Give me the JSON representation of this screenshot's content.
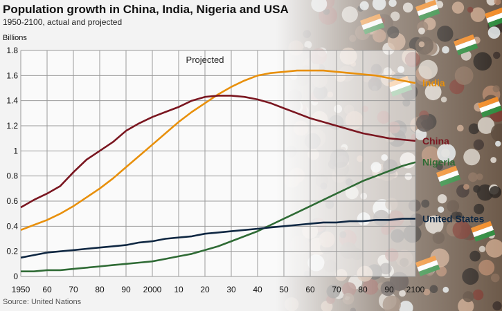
{
  "header": {
    "title": "Population growth in China, India, Nigeria and USA",
    "subtitle": "1950-2100, actual and projected"
  },
  "footer": {
    "source": "Source: United Nations"
  },
  "chart_data": {
    "type": "line",
    "ylabel": "Billions",
    "annotation": "Projected",
    "ylim": [
      0,
      1.8
    ],
    "xlim": [
      1950,
      2100
    ],
    "y_ticks": [
      "0",
      "0.2",
      "0.4",
      "0.6",
      "0.8",
      "1",
      "1.2",
      "1.4",
      "1.6",
      "1.8"
    ],
    "x_ticks": [
      "1950",
      "60",
      "70",
      "80",
      "90",
      "2000",
      "10",
      "20",
      "30",
      "40",
      "50",
      "60",
      "70",
      "80",
      "90",
      "2100"
    ],
    "grid": true,
    "x": [
      1950,
      1955,
      1960,
      1965,
      1970,
      1975,
      1980,
      1985,
      1990,
      1995,
      2000,
      2005,
      2010,
      2015,
      2020,
      2025,
      2030,
      2035,
      2040,
      2045,
      2050,
      2055,
      2060,
      2065,
      2070,
      2075,
      2080,
      2085,
      2090,
      2095,
      2100
    ],
    "series": [
      {
        "name": "India",
        "color": "#e8900c",
        "values": [
          0.37,
          0.41,
          0.45,
          0.5,
          0.56,
          0.63,
          0.7,
          0.78,
          0.87,
          0.96,
          1.05,
          1.14,
          1.23,
          1.31,
          1.38,
          1.45,
          1.51,
          1.56,
          1.6,
          1.62,
          1.63,
          1.64,
          1.64,
          1.64,
          1.63,
          1.62,
          1.61,
          1.6,
          1.58,
          1.56,
          1.54
        ]
      },
      {
        "name": "China",
        "color": "#7a1620",
        "values": [
          0.55,
          0.61,
          0.66,
          0.72,
          0.83,
          0.93,
          1.0,
          1.07,
          1.16,
          1.22,
          1.27,
          1.31,
          1.35,
          1.4,
          1.43,
          1.44,
          1.44,
          1.43,
          1.41,
          1.38,
          1.34,
          1.3,
          1.26,
          1.23,
          1.2,
          1.17,
          1.14,
          1.12,
          1.1,
          1.09,
          1.08
        ]
      },
      {
        "name": "Nigeria",
        "color": "#2f6b35",
        "values": [
          0.04,
          0.04,
          0.05,
          0.05,
          0.06,
          0.07,
          0.08,
          0.09,
          0.1,
          0.11,
          0.12,
          0.14,
          0.16,
          0.18,
          0.21,
          0.24,
          0.28,
          0.32,
          0.36,
          0.41,
          0.46,
          0.51,
          0.56,
          0.61,
          0.66,
          0.71,
          0.76,
          0.8,
          0.84,
          0.88,
          0.91
        ]
      },
      {
        "name": "United States",
        "color": "#0f2742",
        "values": [
          0.15,
          0.17,
          0.19,
          0.2,
          0.21,
          0.22,
          0.23,
          0.24,
          0.25,
          0.27,
          0.28,
          0.3,
          0.31,
          0.32,
          0.34,
          0.35,
          0.36,
          0.37,
          0.38,
          0.39,
          0.4,
          0.41,
          0.42,
          0.43,
          0.43,
          0.44,
          0.44,
          0.45,
          0.45,
          0.46,
          0.46
        ]
      }
    ]
  }
}
